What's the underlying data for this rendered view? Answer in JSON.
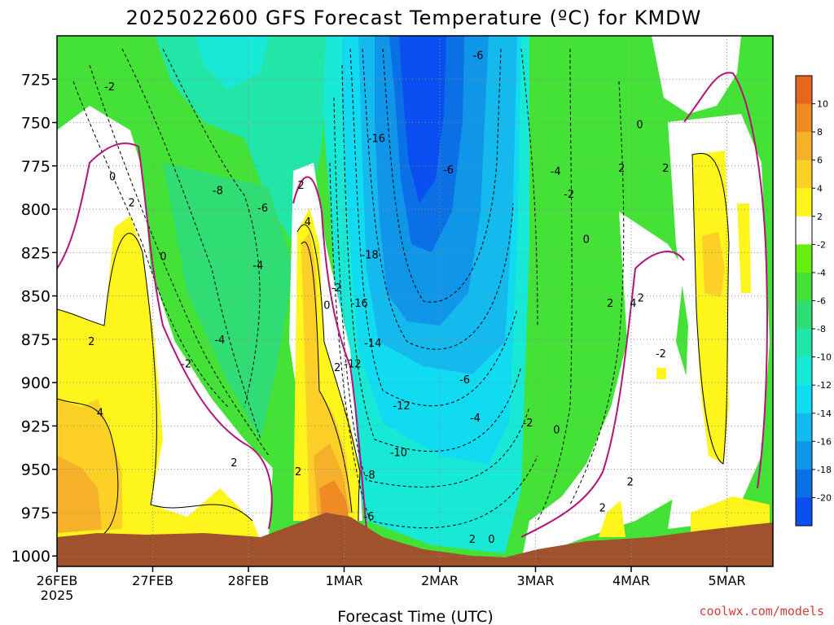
{
  "chart_data": {
    "type": "heatmap",
    "title": "2025022600 GFS Forecast Temperature (ºC) for KMDW",
    "xlabel": "Forecast Time (UTC)",
    "ylabel": "",
    "credit": "coolwx.com/models",
    "x_ticks": [
      "26FEB",
      "27FEB",
      "28FEB",
      "1MAR",
      "2MAR",
      "3MAR",
      "4MAR",
      "5MAR"
    ],
    "x_year": "2025",
    "x_range_days": [
      0,
      7.55
    ],
    "y_ticks": [
      725,
      750,
      775,
      800,
      825,
      850,
      875,
      900,
      925,
      950,
      975,
      1000
    ],
    "ylim": [
      1006,
      700
    ],
    "grid": true,
    "colorbar": {
      "ticks": [
        "10",
        "8",
        "6",
        "4",
        "2",
        "-2",
        "-4",
        "-6",
        "-8",
        "-10",
        "-12",
        "-14",
        "-16",
        "-18",
        "-20"
      ],
      "levels": [
        {
          "min": 10,
          "max": 12,
          "color": "#e8661b"
        },
        {
          "min": 8,
          "max": 10,
          "color": "#f08a22"
        },
        {
          "min": 6,
          "max": 8,
          "color": "#f7b02a"
        },
        {
          "min": 4,
          "max": 6,
          "color": "#fcd026"
        },
        {
          "min": 2,
          "max": 4,
          "color": "#fdf51c"
        },
        {
          "min": -2,
          "max": 2,
          "color": "#ffffff"
        },
        {
          "min": -4,
          "max": -2,
          "color": "#66ee11"
        },
        {
          "min": -6,
          "max": -4,
          "color": "#44e136"
        },
        {
          "min": -8,
          "max": -6,
          "color": "#30dd74"
        },
        {
          "min": -10,
          "max": -8,
          "color": "#22e6a8"
        },
        {
          "min": -12,
          "max": -10,
          "color": "#18e8d6"
        },
        {
          "min": -14,
          "max": -12,
          "color": "#10dbf1"
        },
        {
          "min": -16,
          "max": -14,
          "color": "#14b9ee"
        },
        {
          "min": -18,
          "max": -16,
          "color": "#1096e8"
        },
        {
          "min": -20,
          "max": -18,
          "color": "#0b70e6"
        },
        {
          "min": -22,
          "max": -20,
          "color": "#0a4ff2"
        }
      ]
    },
    "contour_labels": [
      {
        "text": "-2",
        "day": 0.55,
        "p": 729
      },
      {
        "text": "0",
        "day": 0.58,
        "p": 781
      },
      {
        "text": "2",
        "day": 0.78,
        "p": 796
      },
      {
        "text": "0",
        "day": 1.11,
        "p": 827
      },
      {
        "text": "2",
        "day": 0.36,
        "p": 876
      },
      {
        "text": "4",
        "day": 0.45,
        "p": 917
      },
      {
        "text": "-8",
        "day": 1.68,
        "p": 789
      },
      {
        "text": "-6",
        "day": 2.15,
        "p": 799
      },
      {
        "text": "-4",
        "day": 2.1,
        "p": 832
      },
      {
        "text": "-4",
        "day": 1.7,
        "p": 875
      },
      {
        "text": "-2",
        "day": 1.35,
        "p": 889
      },
      {
        "text": "2",
        "day": 1.85,
        "p": 946
      },
      {
        "text": "2",
        "day": 2.55,
        "p": 786
      },
      {
        "text": "4",
        "day": 2.62,
        "p": 807
      },
      {
        "text": "-2",
        "day": 2.92,
        "p": 845
      },
      {
        "text": "0",
        "day": 2.82,
        "p": 855
      },
      {
        "text": "2",
        "day": 2.93,
        "p": 891
      },
      {
        "text": "2",
        "day": 2.52,
        "p": 951
      },
      {
        "text": "-12",
        "day": 3.09,
        "p": 889
      },
      {
        "text": "-16",
        "day": 3.34,
        "p": 759
      },
      {
        "text": "-18",
        "day": 3.27,
        "p": 826
      },
      {
        "text": "-16",
        "day": 3.16,
        "p": 854
      },
      {
        "text": "-14",
        "day": 3.3,
        "p": 877
      },
      {
        "text": "-12",
        "day": 3.6,
        "p": 913
      },
      {
        "text": "-10",
        "day": 3.57,
        "p": 940
      },
      {
        "text": "-8",
        "day": 3.27,
        "p": 953
      },
      {
        "text": "-6",
        "day": 3.26,
        "p": 977
      },
      {
        "text": "-6",
        "day": 4.4,
        "p": 711
      },
      {
        "text": "-6",
        "day": 4.09,
        "p": 777
      },
      {
        "text": "-6",
        "day": 4.26,
        "p": 898
      },
      {
        "text": "-4",
        "day": 4.37,
        "p": 920
      },
      {
        "text": "2",
        "day": 4.34,
        "p": 990
      },
      {
        "text": "0",
        "day": 4.54,
        "p": 990
      },
      {
        "text": "-2",
        "day": 4.92,
        "p": 923
      },
      {
        "text": "0",
        "day": 5.22,
        "p": 927
      },
      {
        "text": "-4",
        "day": 5.21,
        "p": 778
      },
      {
        "text": "-2",
        "day": 5.35,
        "p": 791
      },
      {
        "text": "0",
        "day": 5.53,
        "p": 817
      },
      {
        "text": "2",
        "day": 5.9,
        "p": 776
      },
      {
        "text": "0",
        "day": 6.09,
        "p": 751
      },
      {
        "text": "2",
        "day": 6.36,
        "p": 776
      },
      {
        "text": "2",
        "day": 5.78,
        "p": 854
      },
      {
        "text": "4",
        "day": 6.02,
        "p": 854
      },
      {
        "text": "2",
        "day": 6.1,
        "p": 851
      },
      {
        "text": "-2",
        "day": 6.31,
        "p": 883
      },
      {
        "text": "2",
        "day": 5.99,
        "p": 957
      },
      {
        "text": "2",
        "day": 5.7,
        "p": 972
      }
    ]
  }
}
